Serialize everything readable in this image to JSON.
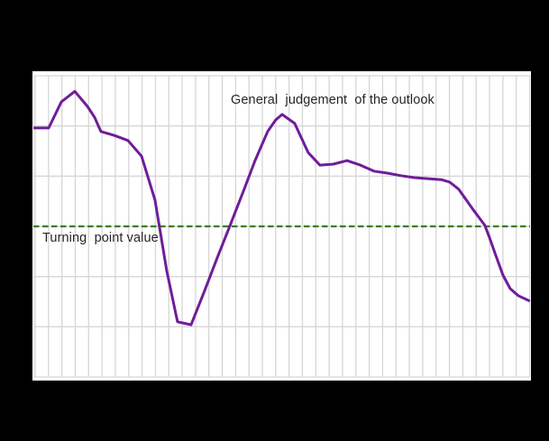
{
  "figure": {
    "background_color": "#000000",
    "plot_background_color": "#ffffff",
    "grid_color": "#d6d6d6",
    "series_line_color": "#6f1d99",
    "turning_line_color": "#3e7e0f",
    "text_color": "#262626"
  },
  "annotations": {
    "series_label": "General  judgement  of the outlook",
    "turning_label": "Turning  point value"
  },
  "chart_data": {
    "type": "line",
    "title": "",
    "xlabel": "",
    "ylabel": "",
    "axis_tick_labels_visible": false,
    "grid": true,
    "legend_position": "none",
    "xlim": [
      0,
      37
    ],
    "ylim": [
      -3,
      3
    ],
    "x_gridline_step": 1,
    "y_gridline_step": 1,
    "turning_point_value": 0,
    "series": [
      {
        "name": "General judgement of the outlook",
        "color": "#6f1d99",
        "points": [
          [
            -0.13,
            1.96
          ],
          [
            0.0,
            1.96
          ],
          [
            1.01,
            1.96
          ],
          [
            1.96,
            2.48
          ],
          [
            2.97,
            2.69
          ],
          [
            3.91,
            2.39
          ],
          [
            4.45,
            2.17
          ],
          [
            4.92,
            1.89
          ],
          [
            5.93,
            1.81
          ],
          [
            6.95,
            1.71
          ],
          [
            7.96,
            1.4
          ],
          [
            8.97,
            0.52
          ],
          [
            9.84,
            -0.88
          ],
          [
            10.65,
            -1.9
          ],
          [
            11.67,
            -1.96
          ],
          [
            12.68,
            -1.28
          ],
          [
            13.62,
            -0.63
          ],
          [
            14.63,
            0.05
          ],
          [
            15.58,
            0.7
          ],
          [
            16.45,
            1.31
          ],
          [
            17.4,
            1.89
          ],
          [
            18.0,
            2.12
          ],
          [
            18.48,
            2.23
          ],
          [
            19.42,
            2.05
          ],
          [
            20.43,
            1.47
          ],
          [
            21.31,
            1.22
          ],
          [
            22.32,
            1.24
          ],
          [
            23.33,
            1.31
          ],
          [
            24.34,
            1.22
          ],
          [
            25.35,
            1.1
          ],
          [
            26.37,
            1.06
          ],
          [
            27.38,
            1.01
          ],
          [
            28.39,
            0.97
          ],
          [
            29.4,
            0.95
          ],
          [
            30.41,
            0.93
          ],
          [
            31.02,
            0.88
          ],
          [
            31.69,
            0.74
          ],
          [
            32.7,
            0.36
          ],
          [
            33.65,
            0.02
          ],
          [
            33.99,
            -0.22
          ],
          [
            34.46,
            -0.57
          ],
          [
            35.0,
            -0.97
          ],
          [
            35.54,
            -1.24
          ],
          [
            36.14,
            -1.38
          ],
          [
            37.02,
            -1.49
          ]
        ]
      }
    ],
    "turning_line": {
      "style": "dashed",
      "color": "#3e7e0f",
      "value": 0
    }
  }
}
